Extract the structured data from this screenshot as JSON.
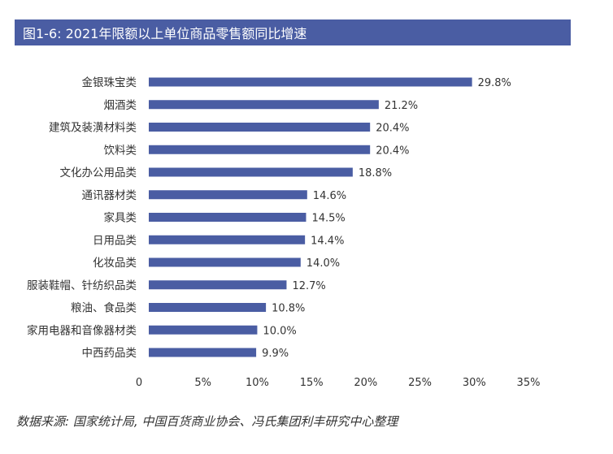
{
  "header": {
    "title": "图1-6: 2021年限额以上单位商品零售额同比增速"
  },
  "colors": {
    "bar": "#4a5da3",
    "title_bg": "#4a5da3",
    "text": "#333333"
  },
  "chart_data": {
    "type": "bar",
    "orientation": "horizontal",
    "title": "图1-6: 2021年限额以上单位商品零售额同比增速",
    "xlabel": "",
    "ylabel": "",
    "xlim": [
      0,
      35
    ],
    "x_ticks": [
      "0",
      "5%",
      "10%",
      "15%",
      "20%",
      "25%",
      "30%",
      "35%"
    ],
    "grid": false,
    "legend": "none",
    "categories": [
      "金银珠宝类",
      "烟酒类",
      "建筑及装潢材料类",
      "饮料类",
      "文化办公用品类",
      "通讯器材类",
      "家具类",
      "日用品类",
      "化妆品类",
      "服装鞋帽、针纺织品类",
      "粮油、食品类",
      "家用电器和音像器材类",
      "中西药品类"
    ],
    "values": [
      29.8,
      21.2,
      20.4,
      20.4,
      18.8,
      14.6,
      14.5,
      14.4,
      14.0,
      12.7,
      10.8,
      10.0,
      9.9
    ],
    "value_labels": [
      "29.8%",
      "21.2%",
      "20.4%",
      "20.4%",
      "18.8%",
      "14.6%",
      "14.5%",
      "14.4%",
      "14.0%",
      "12.7%",
      "10.8%",
      "10.0%",
      "9.9%"
    ]
  },
  "footer": {
    "source": "数据来源: 国家统计局, 中国百货商业协会、冯氏集团利丰研究中心整理"
  }
}
